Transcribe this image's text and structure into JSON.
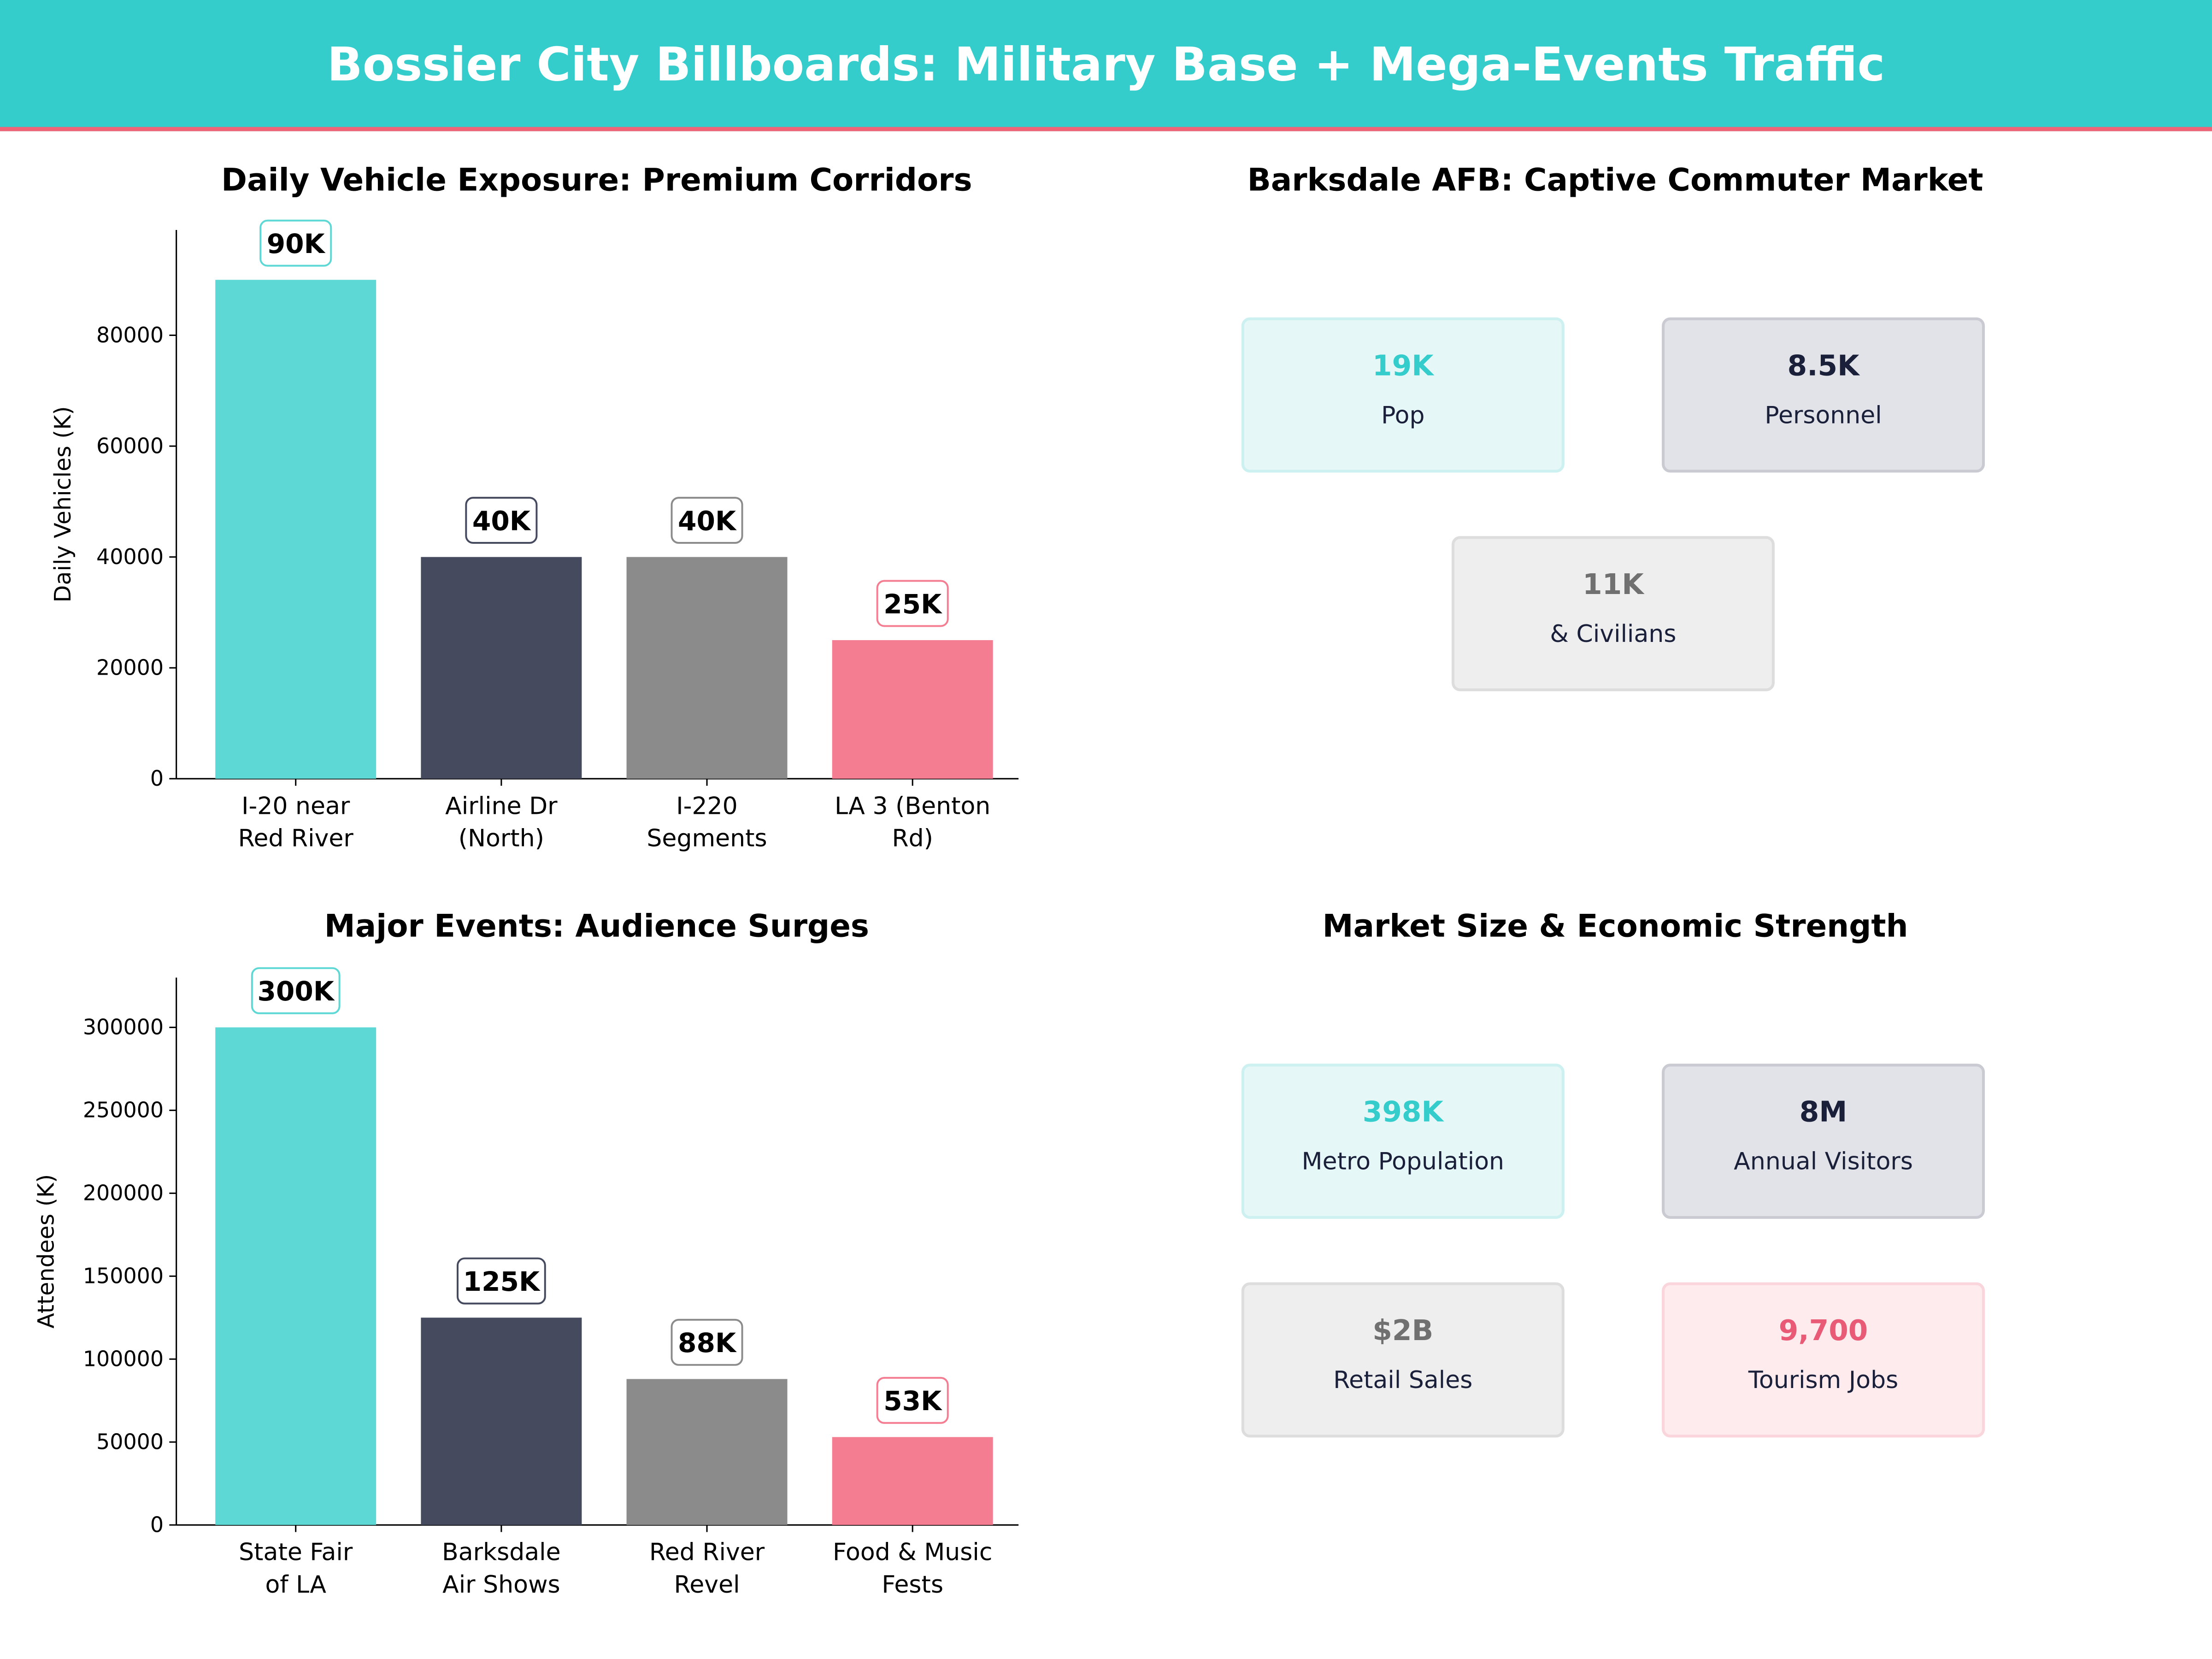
{
  "title": "Bossier City Billboards: Military Base + Mega-Events Traffic",
  "colors": {
    "teal": "#5dd8d4",
    "navy": "#454a5f",
    "grey": "#8b8b8b",
    "pink": "#f47d92"
  },
  "chart_data": [
    {
      "type": "bar",
      "title": "Daily Vehicle Exposure: Premium Corridors",
      "ylabel": "Daily Vehicles (K)",
      "xlabel": "",
      "categories": [
        "I-20 near\nRed River",
        "Airline Dr\n(North)",
        "I-220\nSegments",
        "LA 3 (Benton\nRd)"
      ],
      "values": [
        90000,
        40000,
        40000,
        25000
      ],
      "data_labels": [
        "90K",
        "40K",
        "40K",
        "25K"
      ],
      "bar_colors": [
        "#5dd8d4",
        "#454a5f",
        "#8b8b8b",
        "#f47d92"
      ],
      "yticks": [
        0,
        20000,
        40000,
        60000,
        80000
      ],
      "ylim": [
        0,
        99000
      ],
      "grid": false
    },
    {
      "type": "bar",
      "title": "Major Events: Audience Surges",
      "ylabel": "Attendees (K)",
      "xlabel": "",
      "categories": [
        "State Fair\nof LA",
        "Barksdale\nAir Shows",
        "Red River\nRevel",
        "Food & Music\nFests"
      ],
      "values": [
        300000,
        125000,
        88000,
        53000
      ],
      "data_labels": [
        "300K",
        "125K",
        "88K",
        "53K"
      ],
      "bar_colors": [
        "#5dd8d4",
        "#454a5f",
        "#8b8b8b",
        "#f47d92"
      ],
      "yticks": [
        0,
        50000,
        100000,
        150000,
        200000,
        250000,
        300000
      ],
      "ylim": [
        0,
        330000
      ],
      "grid": false
    }
  ],
  "kpi_panels": [
    {
      "title": "Barksdale AFB: Captive Commuter Market",
      "cards": [
        {
          "value": "19K",
          "label": "Pop",
          "theme": "teal"
        },
        {
          "value": "8.5K",
          "label": "Personnel",
          "theme": "navy"
        },
        {
          "value": "11K",
          "label": "& Civilians",
          "theme": "grey"
        }
      ]
    },
    {
      "title": "Market Size & Economic Strength",
      "cards": [
        {
          "value": "398K",
          "label": "Metro Population",
          "theme": "teal"
        },
        {
          "value": "8M",
          "label": "Annual Visitors",
          "theme": "navy"
        },
        {
          "value": "$2B",
          "label": "Retail Sales",
          "theme": "grey"
        },
        {
          "value": "9,700",
          "label": "Tourism Jobs",
          "theme": "pink"
        }
      ]
    }
  ],
  "card_themes": {
    "teal": {
      "bg": "#e6f7f7",
      "border": "#cdf0f0",
      "value": "#35cccc"
    },
    "navy": {
      "bg": "#e2e3e8",
      "border": "#cacbd2",
      "value": "#1a1f3a"
    },
    "grey": {
      "bg": "#eeeeee",
      "border": "#dddddd",
      "value": "#707070"
    },
    "pink": {
      "bg": "#fdebee",
      "border": "#fad5dc",
      "value": "#e85a75"
    }
  }
}
